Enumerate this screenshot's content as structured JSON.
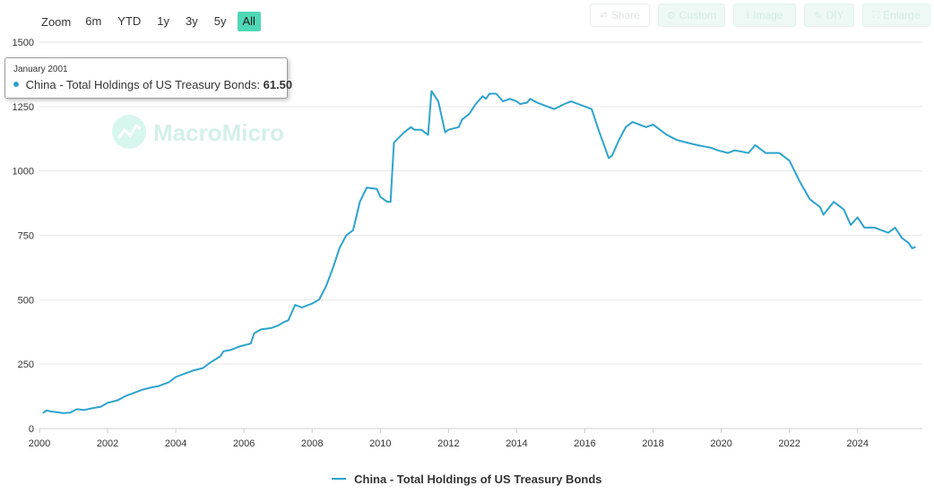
{
  "zoom": {
    "label": "Zoom",
    "buttons": [
      "6m",
      "YTD",
      "1y",
      "3y",
      "5y",
      "All"
    ],
    "active": "All"
  },
  "toolbar": {
    "share": "Share",
    "custom": "Custom",
    "image": "Image",
    "diy": "DIY",
    "enlarge": "Enlarge"
  },
  "watermark": "MacroMicro",
  "tooltip": {
    "date": "January 2001",
    "series": "China - Total Holdings of US Treasury Bonds:",
    "value": "61.50"
  },
  "colors": {
    "line": "#2ea3cc",
    "accent": "#4fd8b6",
    "grid": "#e6e6e6"
  },
  "chart_data": {
    "type": "line",
    "title": "",
    "xlabel": "",
    "ylabel": "",
    "xlim": [
      2000.0,
      2025.9
    ],
    "ylim": [
      0,
      1500
    ],
    "x_ticks": [
      "2000",
      "2002",
      "2004",
      "2006",
      "2008",
      "2010",
      "2012",
      "2014",
      "2016",
      "2018",
      "2020",
      "2022",
      "2024"
    ],
    "y_ticks": [
      "0",
      "250",
      "500",
      "750",
      "1000",
      "1250",
      "1500"
    ],
    "grid": "horizontal",
    "legend": "bottom-center",
    "series": [
      {
        "name": "China - Total Holdings of US Treasury Bonds",
        "x": [
          2000.1,
          2000.2,
          2000.4,
          2000.7,
          2000.9,
          2001.1,
          2001.3,
          2001.6,
          2001.8,
          2002.0,
          2002.3,
          2002.5,
          2002.8,
          2003.0,
          2003.3,
          2003.5,
          2003.8,
          2004.0,
          2004.3,
          2004.5,
          2004.8,
          2005.0,
          2005.3,
          2005.4,
          2005.6,
          2005.9,
          2006.2,
          2006.3,
          2006.5,
          2006.8,
          2007.0,
          2007.2,
          2007.3,
          2007.5,
          2007.7,
          2008.0,
          2008.2,
          2008.4,
          2008.6,
          2008.8,
          2009.0,
          2009.2,
          2009.4,
          2009.6,
          2009.9,
          2010.0,
          2010.1,
          2010.2,
          2010.3,
          2010.4,
          2010.7,
          2010.9,
          2011.0,
          2011.1,
          2011.2,
          2011.4,
          2011.5,
          2011.7,
          2011.9,
          2012.0,
          2012.3,
          2012.4,
          2012.6,
          2012.8,
          2013.0,
          2013.1,
          2013.2,
          2013.4,
          2013.6,
          2013.8,
          2014.0,
          2014.1,
          2014.3,
          2014.4,
          2014.6,
          2014.9,
          2015.1,
          2015.4,
          2015.6,
          2015.8,
          2016.0,
          2016.2,
          2016.4,
          2016.7,
          2016.8,
          2016.9,
          2017.0,
          2017.2,
          2017.4,
          2017.6,
          2017.8,
          2018.0,
          2018.1,
          2018.4,
          2018.7,
          2019.0,
          2019.3,
          2019.7,
          2019.9,
          2020.2,
          2020.4,
          2020.8,
          2021.0,
          2021.3,
          2021.5,
          2021.7,
          2022.0,
          2022.3,
          2022.6,
          2022.9,
          2023.0,
          2023.3,
          2023.6,
          2023.8,
          2024.0,
          2024.2,
          2024.5,
          2024.7,
          2024.9,
          2025.1,
          2025.3,
          2025.5,
          2025.6,
          2025.7
        ],
        "y": [
          60,
          70,
          65,
          60,
          62,
          75,
          72,
          80,
          85,
          100,
          110,
          125,
          140,
          150,
          160,
          165,
          180,
          200,
          215,
          225,
          235,
          255,
          280,
          300,
          305,
          320,
          330,
          370,
          385,
          390,
          400,
          415,
          420,
          480,
          470,
          485,
          500,
          550,
          620,
          700,
          750,
          770,
          880,
          935,
          930,
          900,
          890,
          880,
          880,
          1110,
          1150,
          1170,
          1160,
          1160,
          1160,
          1140,
          1310,
          1270,
          1150,
          1160,
          1170,
          1200,
          1220,
          1260,
          1290,
          1280,
          1300,
          1300,
          1270,
          1280,
          1270,
          1260,
          1265,
          1280,
          1265,
          1250,
          1240,
          1260,
          1270,
          1260,
          1250,
          1240,
          1160,
          1050,
          1060,
          1090,
          1120,
          1170,
          1190,
          1180,
          1170,
          1180,
          1170,
          1140,
          1120,
          1110,
          1100,
          1090,
          1080,
          1070,
          1080,
          1070,
          1100,
          1070,
          1070,
          1070,
          1040,
          960,
          890,
          860,
          830,
          880,
          850,
          790,
          820,
          780,
          780,
          770,
          760,
          780,
          740,
          720,
          700,
          705
        ]
      }
    ]
  }
}
